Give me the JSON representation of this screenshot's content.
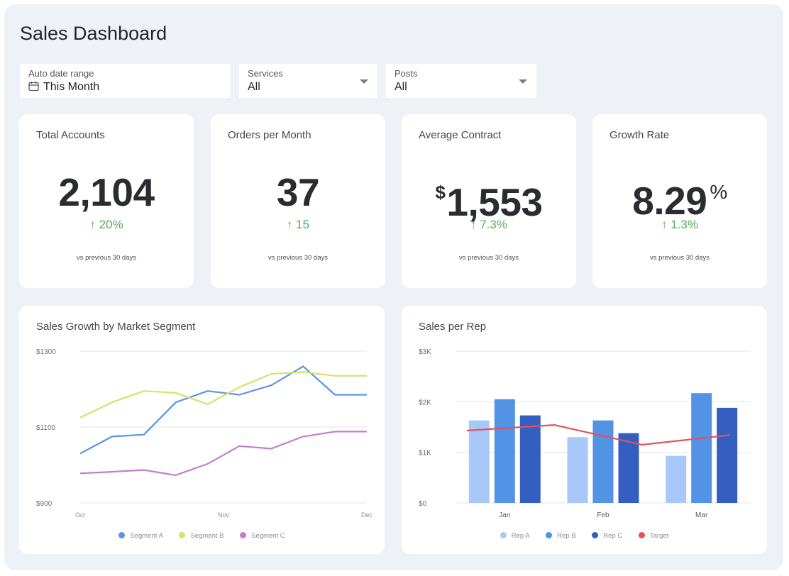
{
  "title": "Sales Dashboard",
  "filters": {
    "date": {
      "label": "Auto date range",
      "value": "This Month",
      "icon": "calendar-icon"
    },
    "services": {
      "label": "Services",
      "value": "All"
    },
    "posts": {
      "label": "Posts",
      "value": "All"
    }
  },
  "kpis": [
    {
      "label": "Total Accounts",
      "value": "2,104",
      "delta": "↑ 20%",
      "note": "vs previous 30 days"
    },
    {
      "label": "Orders per Month",
      "value": "37",
      "delta": "↑ 15",
      "note": "vs previous 30 days"
    },
    {
      "label": "Average Contract",
      "prefix": "$",
      "value": "1,553",
      "delta": "↑ 7.3%",
      "note": "vs previous 30 days"
    },
    {
      "label": "Growth Rate",
      "value": "8.29",
      "suffix": "%",
      "delta": "↑ 1.3%",
      "note": "vs previous 30 days"
    }
  ],
  "colors": {
    "positive": "#4db24d",
    "segA": "#5b93e6",
    "segB": "#d4e36b",
    "segC": "#c77bd0",
    "repA": "#a7c8f8",
    "repB": "#5293e6",
    "repC": "#345fc0",
    "target": "#e0545e"
  },
  "chart_data": [
    {
      "type": "line",
      "title": "Sales Growth by Market Segment",
      "x_ticks": [
        "Oct",
        "Nov",
        "Dec"
      ],
      "y_ticks": [
        "$1300",
        "$1100",
        "$900"
      ],
      "ylim": [
        900,
        1300
      ],
      "grid": true,
      "legend_position": "bottom",
      "points": 10,
      "series": [
        {
          "name": "Segment A",
          "values": [
            1030,
            1075,
            1080,
            1165,
            1195,
            1185,
            1210,
            1260,
            1185,
            1185
          ]
        },
        {
          "name": "Segment B",
          "values": [
            1125,
            1165,
            1195,
            1190,
            1160,
            1205,
            1240,
            1245,
            1235,
            1235
          ]
        },
        {
          "name": "Segment C",
          "values": [
            978,
            982,
            987,
            973,
            1003,
            1050,
            1043,
            1075,
            1088,
            1088
          ]
        }
      ]
    },
    {
      "type": "bar",
      "title": "Sales per Rep",
      "categories": [
        "Jan",
        "Feb",
        "Mar"
      ],
      "y_ticks": [
        "$3K",
        "$2K",
        "$1K",
        "$0"
      ],
      "ylim": [
        0,
        3000
      ],
      "grid": true,
      "legend_position": "bottom",
      "series": [
        {
          "name": "Rep A",
          "values": [
            1630,
            1300,
            930
          ]
        },
        {
          "name": "Rep B",
          "values": [
            2050,
            1630,
            2170
          ]
        },
        {
          "name": "Rep C",
          "values": [
            1730,
            1380,
            1880
          ]
        }
      ],
      "target": {
        "name": "Target",
        "values": [
          1430,
          1540,
          1150,
          1340
        ]
      }
    }
  ]
}
